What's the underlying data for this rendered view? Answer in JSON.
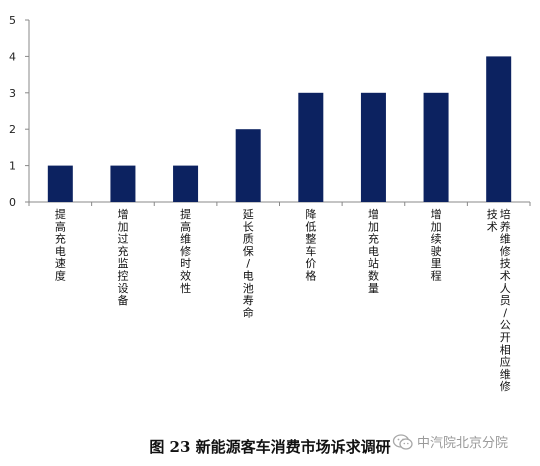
{
  "chart_data": {
    "type": "bar",
    "categories": [
      "提高充电速度",
      "增加过充监控设备",
      "提高维修时效性",
      "延长质保/电池寿命",
      "降低整车价格",
      "增加充电站数量",
      "增加续驶里程",
      "培养维修技术人员/公开相应维修技术"
    ],
    "values": [
      1,
      1,
      1,
      2,
      3,
      3,
      3,
      4
    ],
    "ylim": [
      0,
      5
    ],
    "yticks": [
      0,
      1,
      2,
      3,
      4,
      5
    ],
    "bar_color": "#0c2260",
    "grid": false,
    "legend": false
  },
  "caption": "图 23 新能源客车消费市场诉求调研",
  "watermark": {
    "text": "中汽院北京分院",
    "icon": "wechat-icon"
  }
}
